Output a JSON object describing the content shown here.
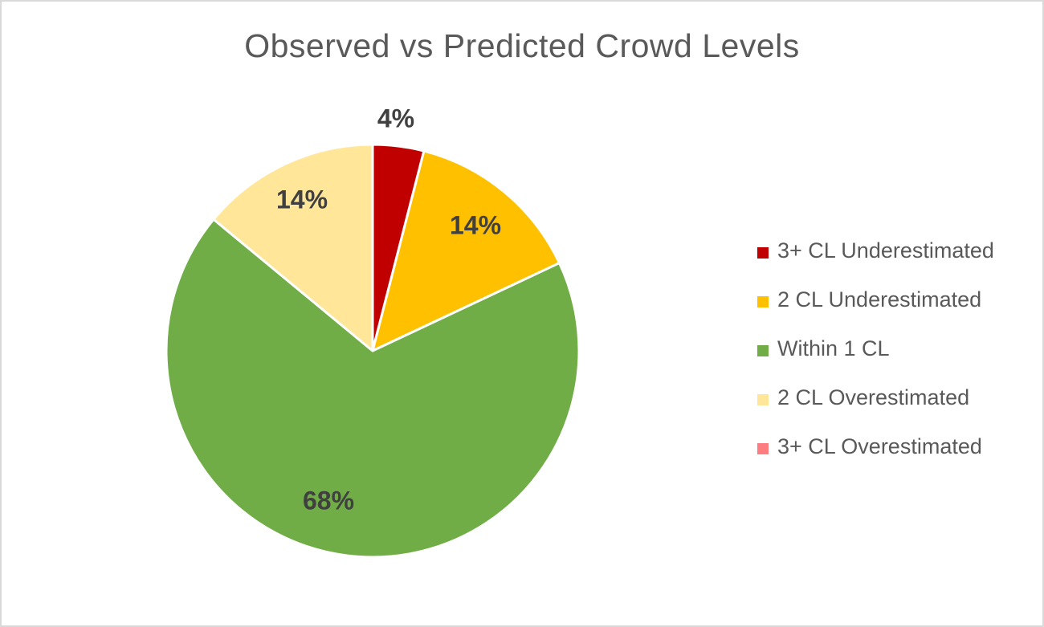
{
  "chart_data": {
    "type": "pie",
    "title": "Observed vs Predicted Crowd Levels",
    "slices": [
      {
        "label": "3+ CL Underestimated",
        "value": 4,
        "color": "#c00000",
        "data_label": "4%"
      },
      {
        "label": "2 CL Underestimated",
        "value": 14,
        "color": "#ffc000",
        "data_label": "14%"
      },
      {
        "label": "Within 1 CL",
        "value": 68,
        "color": "#70ad47",
        "data_label": "68%"
      },
      {
        "label": "2 CL Overestimated",
        "value": 14,
        "color": "#ffe699",
        "data_label": "14%"
      },
      {
        "label": "3+ CL Overestimated",
        "value": 0,
        "color": "#ff7c80",
        "data_label": ""
      }
    ],
    "legend_position": "right"
  }
}
